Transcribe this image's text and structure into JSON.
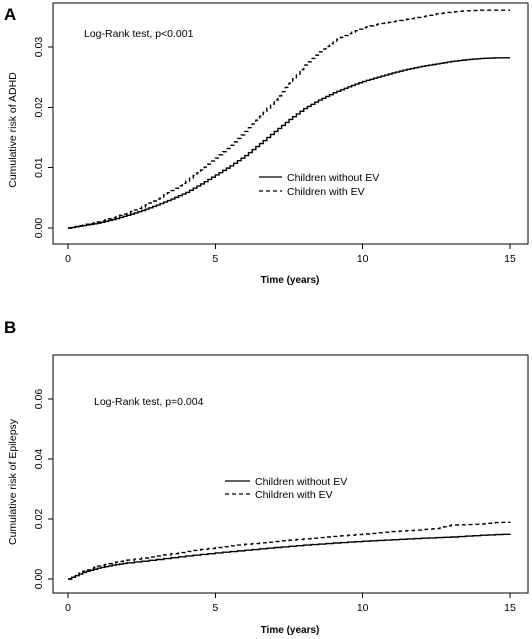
{
  "chart_data": [
    {
      "type": "line",
      "panel_label": "A",
      "xlabel": "Time (years)",
      "ylabel": "Cumulative risk of ADHD",
      "xlim": [
        0,
        15
      ],
      "ylim": [
        0,
        0.036
      ],
      "x_ticks": [
        "0",
        "5",
        "10",
        "15"
      ],
      "y_ticks": [
        "0.00",
        "0.01",
        "0.02",
        "0.03"
      ],
      "annotation": "Log-Rank test, p<0.001",
      "legend_position": "center-right",
      "grid": false,
      "series": [
        {
          "name": "Children without EV",
          "line_style": "solid",
          "x": [
            0,
            0.5,
            1,
            1.5,
            2,
            2.5,
            3,
            3.5,
            4,
            4.5,
            5,
            5.5,
            6,
            6.5,
            7,
            7.5,
            8,
            8.5,
            9,
            9.5,
            10,
            10.5,
            11,
            11.5,
            12,
            12.5,
            13,
            13.5,
            14,
            14.5,
            15
          ],
          "values": [
            0,
            0.0004,
            0.0008,
            0.0014,
            0.0021,
            0.0029,
            0.0038,
            0.0048,
            0.0059,
            0.0073,
            0.0088,
            0.0103,
            0.012,
            0.014,
            0.016,
            0.018,
            0.0198,
            0.0212,
            0.0224,
            0.0234,
            0.0243,
            0.025,
            0.0257,
            0.0263,
            0.0268,
            0.0272,
            0.0276,
            0.0279,
            0.0281,
            0.0282,
            0.0282
          ]
        },
        {
          "name": "Children with EV",
          "line_style": "dashed",
          "x": [
            0,
            0.5,
            1,
            1.5,
            2,
            2.5,
            3,
            3.5,
            4,
            4.5,
            5,
            5.5,
            6,
            6.5,
            7,
            7.5,
            8,
            8.5,
            9,
            9.5,
            10,
            10.5,
            11,
            11.5,
            12,
            12.5,
            13,
            13.5,
            14,
            14.5,
            15
          ],
          "values": [
            0,
            0.0005,
            0.001,
            0.0017,
            0.0025,
            0.0035,
            0.0048,
            0.0062,
            0.0078,
            0.0096,
            0.0116,
            0.0137,
            0.016,
            0.0185,
            0.0212,
            0.024,
            0.027,
            0.0292,
            0.031,
            0.0322,
            0.0332,
            0.0338,
            0.0342,
            0.0346,
            0.035,
            0.0355,
            0.0358,
            0.036,
            0.0361,
            0.0361,
            0.0361
          ]
        }
      ]
    },
    {
      "type": "line",
      "panel_label": "B",
      "xlabel": "Time (years)",
      "ylabel": "Cumulative risk of Epilepsy",
      "xlim": [
        0,
        15
      ],
      "ylim": [
        0,
        0.075
      ],
      "x_ticks": [
        "0",
        "5",
        "10",
        "15"
      ],
      "y_ticks": [
        "0.00",
        "0.02",
        "0.04",
        "0.06"
      ],
      "annotation": "Log-Rank test, p=0.004",
      "legend_position": "center",
      "grid": false,
      "series": [
        {
          "name": "Children without EV",
          "line_style": "solid",
          "x": [
            0,
            0.5,
            1,
            1.5,
            2,
            3,
            4,
            5,
            6,
            7,
            8,
            9,
            10,
            11,
            12,
            13,
            14,
            15
          ],
          "values": [
            0,
            0.0022,
            0.0036,
            0.0046,
            0.0054,
            0.0065,
            0.0077,
            0.0087,
            0.0096,
            0.0105,
            0.0113,
            0.012,
            0.0126,
            0.0131,
            0.0136,
            0.014,
            0.0146,
            0.015
          ]
        },
        {
          "name": "Children with EV",
          "line_style": "dashed",
          "x": [
            0,
            0.5,
            1,
            1.5,
            2,
            3,
            4,
            5,
            6,
            7,
            8,
            9,
            10,
            11,
            12,
            12.5,
            13,
            14,
            14.5,
            15
          ],
          "values": [
            0,
            0.0026,
            0.0043,
            0.0054,
            0.0063,
            0.0077,
            0.0092,
            0.0105,
            0.0116,
            0.0125,
            0.0134,
            0.0142,
            0.015,
            0.0158,
            0.0165,
            0.0168,
            0.018,
            0.0183,
            0.0188,
            0.019
          ]
        }
      ]
    }
  ]
}
